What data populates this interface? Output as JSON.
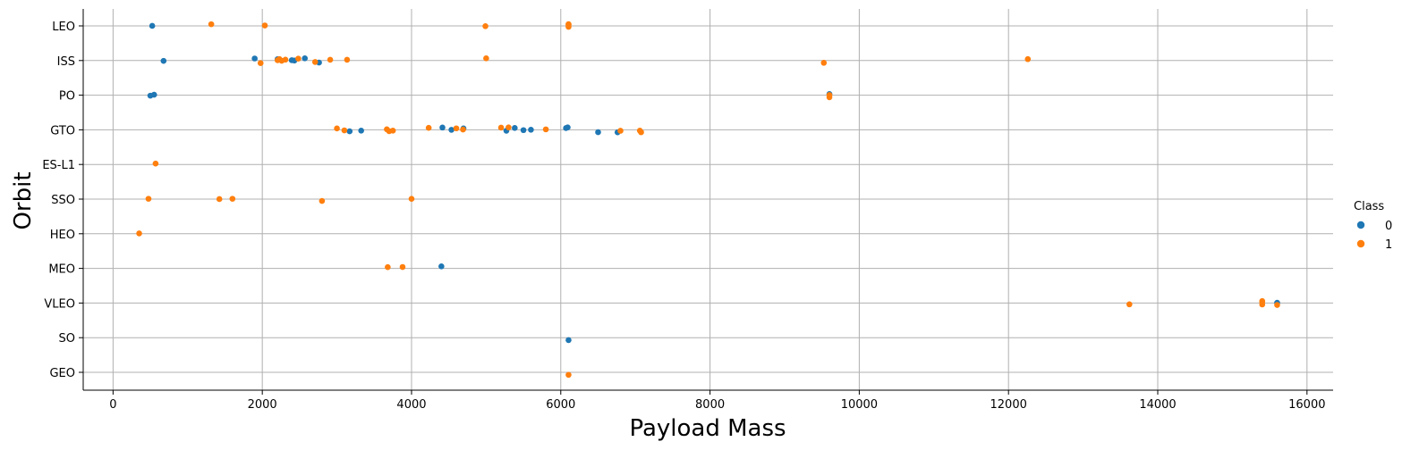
{
  "chart_data": {
    "type": "scatter",
    "title": "",
    "xlabel": "Payload Mass",
    "ylabel": "Orbit",
    "xlim": [
      -400,
      16350
    ],
    "x_ticks": [
      0,
      2000,
      4000,
      6000,
      8000,
      10000,
      12000,
      14000,
      16000
    ],
    "categories": [
      "LEO",
      "ISS",
      "PO",
      "GTO",
      "ES-L1",
      "SSO",
      "HEO",
      "MEO",
      "VLEO",
      "SO",
      "GEO"
    ],
    "grid": true,
    "legend": {
      "title": "Class",
      "position": "right"
    },
    "series": [
      {
        "name": "0",
        "color": "#1f77b4",
        "points": [
          {
            "x": 525,
            "y": "LEO"
          },
          {
            "x": 677,
            "y": "ISS"
          },
          {
            "x": 1898,
            "y": "ISS"
          },
          {
            "x": 2205,
            "y": "ISS"
          },
          {
            "x": 2395,
            "y": "ISS"
          },
          {
            "x": 2430,
            "y": "ISS"
          },
          {
            "x": 2570,
            "y": "ISS"
          },
          {
            "x": 2760,
            "y": "ISS"
          },
          {
            "x": 500,
            "y": "PO"
          },
          {
            "x": 550,
            "y": "PO"
          },
          {
            "x": 9600,
            "y": "PO"
          },
          {
            "x": 3170,
            "y": "GTO"
          },
          {
            "x": 3325,
            "y": "GTO"
          },
          {
            "x": 4414,
            "y": "GTO"
          },
          {
            "x": 4535,
            "y": "GTO"
          },
          {
            "x": 4696,
            "y": "GTO"
          },
          {
            "x": 5271,
            "y": "GTO"
          },
          {
            "x": 5383,
            "y": "GTO"
          },
          {
            "x": 5500,
            "y": "GTO"
          },
          {
            "x": 5600,
            "y": "GTO"
          },
          {
            "x": 6070,
            "y": "GTO"
          },
          {
            "x": 6092,
            "y": "GTO"
          },
          {
            "x": 6500,
            "y": "GTO"
          },
          {
            "x": 6761,
            "y": "GTO"
          },
          {
            "x": 4400,
            "y": "MEO"
          },
          {
            "x": 15600,
            "y": "VLEO"
          },
          {
            "x": 6104,
            "y": "SO"
          }
        ]
      },
      {
        "name": "1",
        "color": "#ff7f0e",
        "points": [
          {
            "x": 1316,
            "y": "LEO"
          },
          {
            "x": 2034,
            "y": "LEO"
          },
          {
            "x": 4990,
            "y": "LEO"
          },
          {
            "x": 6104,
            "y": "LEO"
          },
          {
            "x": 6104,
            "y": "LEO"
          },
          {
            "x": 6104,
            "y": "LEO"
          },
          {
            "x": 1977,
            "y": "ISS"
          },
          {
            "x": 2205,
            "y": "ISS"
          },
          {
            "x": 2230,
            "y": "ISS"
          },
          {
            "x": 2260,
            "y": "ISS"
          },
          {
            "x": 2310,
            "y": "ISS"
          },
          {
            "x": 2482,
            "y": "ISS"
          },
          {
            "x": 2708,
            "y": "ISS"
          },
          {
            "x": 2910,
            "y": "ISS"
          },
          {
            "x": 3136,
            "y": "ISS"
          },
          {
            "x": 5000,
            "y": "ISS"
          },
          {
            "x": 9525,
            "y": "ISS"
          },
          {
            "x": 12259,
            "y": "ISS"
          },
          {
            "x": 9600,
            "y": "PO"
          },
          {
            "x": 9600,
            "y": "PO"
          },
          {
            "x": 3000,
            "y": "GTO"
          },
          {
            "x": 3100,
            "y": "GTO"
          },
          {
            "x": 3669,
            "y": "GTO"
          },
          {
            "x": 3700,
            "y": "GTO"
          },
          {
            "x": 3750,
            "y": "GTO"
          },
          {
            "x": 4230,
            "y": "GTO"
          },
          {
            "x": 4600,
            "y": "GTO"
          },
          {
            "x": 4690,
            "y": "GTO"
          },
          {
            "x": 5200,
            "y": "GTO"
          },
          {
            "x": 5300,
            "y": "GTO"
          },
          {
            "x": 5800,
            "y": "GTO"
          },
          {
            "x": 6800,
            "y": "GTO"
          },
          {
            "x": 7060,
            "y": "GTO"
          },
          {
            "x": 7076,
            "y": "GTO"
          },
          {
            "x": 570,
            "y": "ES-L1"
          },
          {
            "x": 475,
            "y": "SSO"
          },
          {
            "x": 1425,
            "y": "SSO"
          },
          {
            "x": 1600,
            "y": "SSO"
          },
          {
            "x": 2800,
            "y": "SSO"
          },
          {
            "x": 4000,
            "y": "SSO"
          },
          {
            "x": 350,
            "y": "HEO"
          },
          {
            "x": 3681,
            "y": "MEO"
          },
          {
            "x": 3880,
            "y": "MEO"
          },
          {
            "x": 13620,
            "y": "VLEO"
          },
          {
            "x": 15400,
            "y": "VLEO"
          },
          {
            "x": 15400,
            "y": "VLEO"
          },
          {
            "x": 15400,
            "y": "VLEO"
          },
          {
            "x": 15600,
            "y": "VLEO"
          },
          {
            "x": 6104,
            "y": "GEO"
          }
        ]
      }
    ]
  }
}
